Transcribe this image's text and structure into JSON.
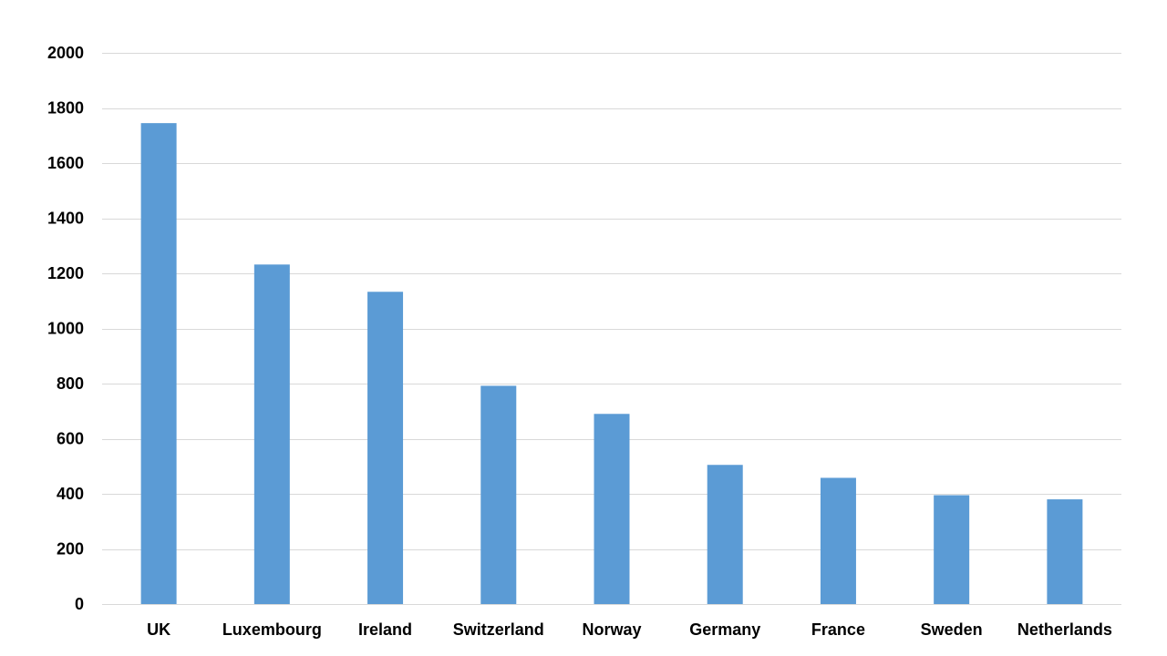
{
  "chart_data": {
    "type": "bar",
    "categories": [
      "UK",
      "Luxembourg",
      "Ireland",
      "Switzerland",
      "Norway",
      "Germany",
      "France",
      "Sweden",
      "Netherlands"
    ],
    "values": [
      1745,
      1232,
      1133,
      792,
      690,
      505,
      458,
      395,
      380
    ],
    "title": "",
    "xlabel": "",
    "ylabel": "",
    "ylim": [
      0,
      2000
    ],
    "yticks": [
      0,
      200,
      400,
      600,
      800,
      1000,
      1200,
      1400,
      1600,
      1800,
      2000
    ],
    "grid": true,
    "legend": "none",
    "colors": {
      "bar": "#5b9bd5",
      "grid": "#d9d9d9",
      "text": "#000000"
    }
  }
}
